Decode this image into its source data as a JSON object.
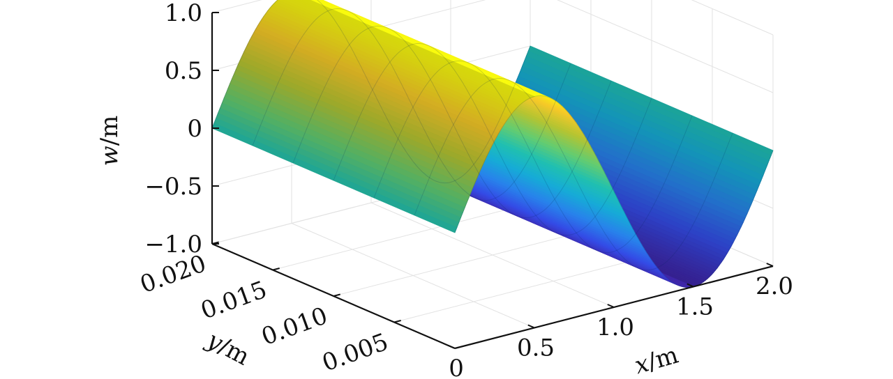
{
  "chart_data": {
    "type": "surface",
    "zlabel_var": "w",
    "zlabel_unit": "/m",
    "xlabel_var": "x",
    "xlabel_unit": "/m",
    "ylabel_var": "y",
    "ylabel_unit": "/m",
    "xlim": [
      0,
      2
    ],
    "ylim": [
      0,
      0.02
    ],
    "zlim": [
      -1,
      1
    ],
    "x_ticks": [
      0,
      0.5,
      1.0,
      1.5,
      2.0
    ],
    "x_tick_labels": [
      "0",
      "0.5",
      "1.0",
      "1.5",
      "2.0"
    ],
    "y_ticks": [
      0.005,
      0.01,
      0.015,
      0.02
    ],
    "y_tick_labels": [
      "0.005",
      "0.010",
      "0.015",
      "0.020"
    ],
    "z_ticks": [
      -1,
      -0.5,
      0,
      0.5,
      1
    ],
    "z_tick_labels": [
      "−1.0",
      "−0.5",
      "0",
      "0.5",
      "1.0"
    ],
    "function": "w = sin(pi * x)",
    "amplitude": 1,
    "grid": true,
    "colormap": "parula",
    "colors": {
      "low": "#3e26a8",
      "mid": "#20c0b0",
      "high": "#f9fb0e"
    }
  }
}
